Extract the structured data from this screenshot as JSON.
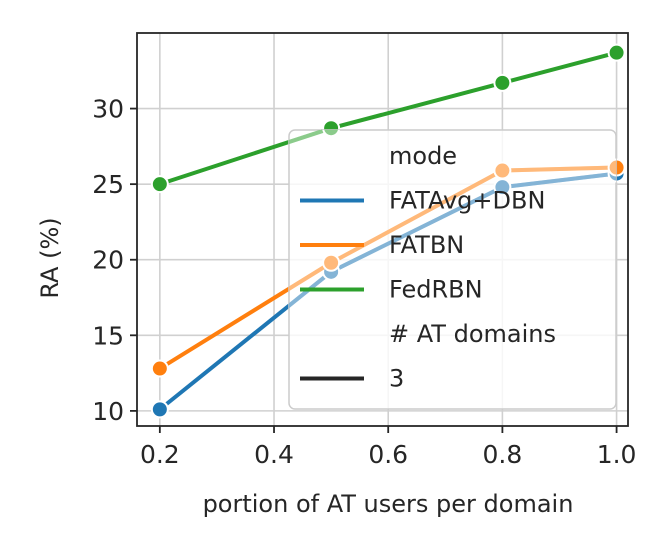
{
  "chart_data": {
    "type": "line",
    "title": "",
    "xlabel": "portion of AT users per domain",
    "ylabel": "RA (%)",
    "xlim": [
      0.16,
      1.02
    ],
    "ylim": [
      9.0,
      35.0
    ],
    "xticks": [
      0.2,
      0.4,
      0.6,
      0.8,
      1.0
    ],
    "xtick_labels": [
      "0.2",
      "0.4",
      "0.6",
      "0.8",
      "1.0"
    ],
    "yticks": [
      10,
      15,
      20,
      25,
      30
    ],
    "ytick_labels": [
      "10",
      "15",
      "20",
      "25",
      "30"
    ],
    "grid": true,
    "legend_placement": "lower-right",
    "series": [
      {
        "name": "FATAvg+DBN",
        "color": "#1f77b4",
        "marker": "circle",
        "x": [
          0.2,
          0.5,
          0.8,
          1.0
        ],
        "values": [
          10.1,
          19.2,
          24.8,
          25.7
        ]
      },
      {
        "name": "FATBN",
        "color": "#ff7f0e",
        "marker": "circle",
        "x": [
          0.2,
          0.5,
          0.8,
          1.0
        ],
        "values": [
          12.8,
          19.8,
          25.9,
          26.1
        ]
      },
      {
        "name": "FedRBN",
        "color": "#2ca02c",
        "marker": "circle",
        "x": [
          0.2,
          0.5,
          0.8,
          1.0
        ],
        "values": [
          25.0,
          28.7,
          31.7,
          33.7
        ]
      }
    ],
    "legend": {
      "hue_title": "mode",
      "hue_entries": [
        {
          "label": "FATAvg+DBN",
          "color": "#1f77b4"
        },
        {
          "label": "FATBN",
          "color": "#ff7f0e"
        },
        {
          "label": "FedRBN",
          "color": "#2ca02c"
        }
      ],
      "size_title": "# AT domains",
      "size_entries": [
        {
          "label": "3",
          "color": "#262626"
        }
      ]
    }
  }
}
